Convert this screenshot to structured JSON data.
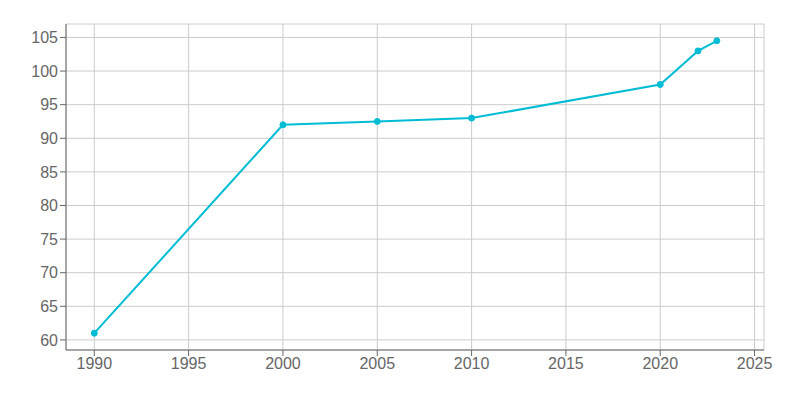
{
  "chart_data": {
    "type": "line",
    "x": [
      1990,
      2000,
      2005,
      2010,
      2020,
      2022,
      2023
    ],
    "values": [
      61,
      92,
      92.5,
      93,
      98,
      103,
      104.5
    ],
    "color": "#00bcd4",
    "marker": "circle",
    "xlim": [
      1988.5,
      2025.5
    ],
    "ylim": [
      58.5,
      107
    ],
    "xticks": [
      1990,
      1995,
      2000,
      2005,
      2010,
      2015,
      2020,
      2025
    ],
    "yticks": [
      60,
      65,
      70,
      75,
      80,
      85,
      90,
      95,
      100,
      105
    ],
    "grid": true
  }
}
